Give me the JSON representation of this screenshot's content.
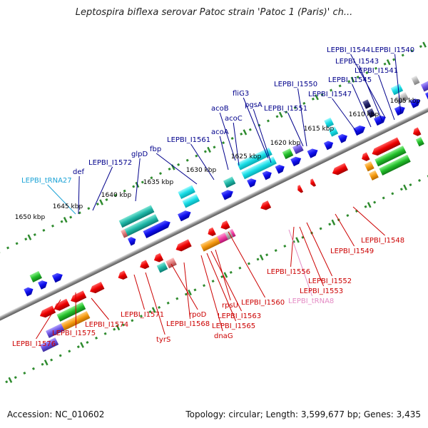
{
  "title": "Leptospira biflexa serovar Patoc strain 'Patoc 1 (Paris)' ch...",
  "footer": {
    "accession": "Accession: NC_010602",
    "topology": "Topology: circular; Length: 3,599,677 bp; Genes: 3,435"
  },
  "colors": {
    "gene_label": "#00008b",
    "gene_label_reverse": "#cc0000",
    "trna_label_forward": "#1ba3d6",
    "trna_label_reverse": "#e48bc4",
    "tick": "#2e8b2e",
    "backbone": "#8c8c8c"
  },
  "kbp_ticks": [
    "1605 kbp",
    "1610 kbp",
    "1615 kbp",
    "1620 kbp",
    "1625 kbp",
    "1630 kbp",
    "1635 kbp",
    "1640 kbp",
    "1645 kbp",
    "1650 kbp"
  ],
  "forward_labels": [
    "LEPBI_I1540",
    "LEPBI_I1544",
    "LEPBI_I1543",
    "LEPBI_I1541",
    "LEPBI_I1545",
    "LEPBI_I1550",
    "LEPBI_I1547",
    "fliG3",
    "pgsA",
    "acoB",
    "LEPBI_I1551",
    "acoC",
    "acoA",
    "LEPBI_I1561",
    "fbp",
    "glpD",
    "LEPBI_I1572",
    "def",
    "LEPBI_tRNA27"
  ],
  "reverse_labels": [
    "LEPBI_I1548",
    "LEPBI_I1549",
    "LEPBI_I1556",
    "LEPBI_I1552",
    "LEPBI_I1553",
    "LEPBI_tRNA8",
    "LEPBI_I1560",
    "rpsU",
    "LEPBI_I1563",
    "LEPBI_I1565",
    "dnaG",
    "LEPBI_I1571",
    "rpoD",
    "LEPBI_I1568",
    "tyrS",
    "LEPBI_I1574",
    "LEPBI_I1575",
    "LEPBI_I1576"
  ]
}
